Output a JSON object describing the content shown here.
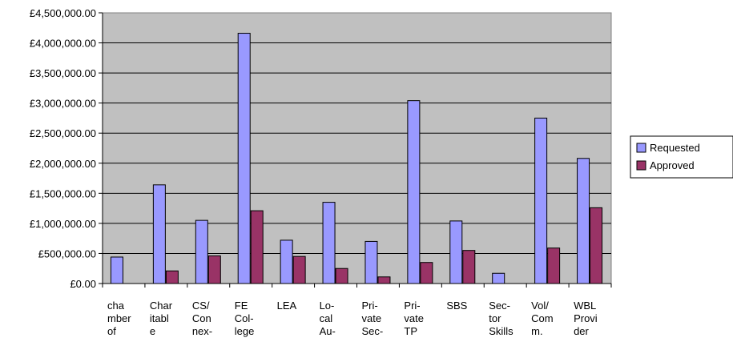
{
  "chart_data": {
    "type": "bar",
    "title": "",
    "xlabel": "",
    "ylabel": "",
    "ylim": [
      0,
      4500000
    ],
    "ytick_step": 500000,
    "ytick_labels": [
      "£0.00",
      "£500,000.00",
      "£1,000,000.00",
      "£1,500,000.00",
      "£2,000,000.00",
      "£2,500,000.00",
      "£3,000,000.00",
      "£3,500,000.00",
      "£4,000,000.00",
      "£4,500,000.00"
    ],
    "grid": true,
    "legend_position": "right",
    "plot_background": "#c0c0c0",
    "categories": [
      [
        "cha",
        "mber",
        "of"
      ],
      [
        "Char",
        "itabl",
        "e"
      ],
      [
        "CS/",
        "Con",
        "nex-"
      ],
      [
        "FE",
        "Col-",
        "lege"
      ],
      [
        "LEA"
      ],
      [
        "Lo-",
        "cal",
        "Au-"
      ],
      [
        "Pri-",
        "vate",
        "Sec-"
      ],
      [
        "Pri-",
        "vate",
        "TP"
      ],
      [
        "SBS"
      ],
      [
        "Sec-",
        "tor",
        "Skills"
      ],
      [
        "Vol/",
        "Com",
        "m."
      ],
      [
        "WBL",
        "Provi",
        "der"
      ]
    ],
    "series": [
      {
        "name": "Requested",
        "color": "#9999ff",
        "values": [
          440000,
          1640000,
          1050000,
          4160000,
          720000,
          1350000,
          700000,
          3040000,
          1040000,
          170000,
          2750000,
          2080000
        ]
      },
      {
        "name": "Approved",
        "color": "#993366",
        "values": [
          0,
          210000,
          460000,
          1210000,
          450000,
          250000,
          110000,
          350000,
          550000,
          0,
          590000,
          1260000
        ]
      }
    ]
  }
}
